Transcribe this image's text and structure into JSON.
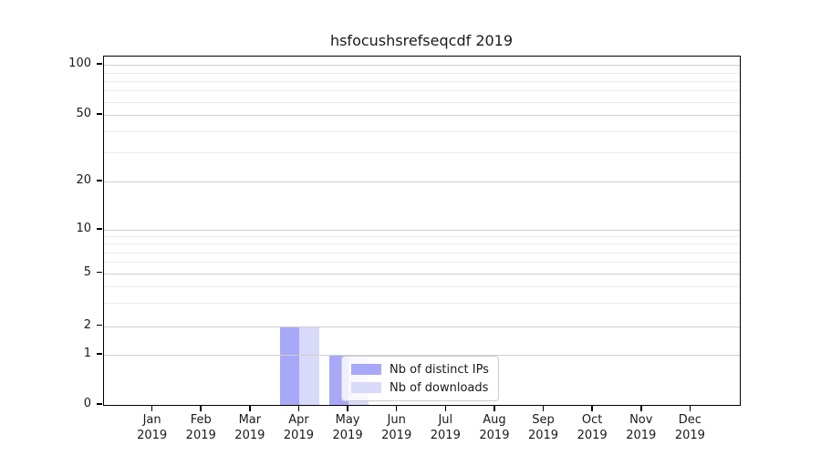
{
  "chart_data": {
    "type": "bar",
    "title": "hsfocushsrefseqcdf 2019",
    "categories": [
      "Jan 2019",
      "Feb 2019",
      "Mar 2019",
      "Apr 2019",
      "May 2019",
      "Jun 2019",
      "Jul 2019",
      "Aug 2019",
      "Sep 2019",
      "Oct 2019",
      "Nov 2019",
      "Dec 2019"
    ],
    "series": [
      {
        "name": "Nb of distinct IPs",
        "color": "#a8a8f8",
        "values": [
          0,
          0,
          0,
          2,
          1,
          0,
          0,
          0,
          0,
          0,
          0,
          0
        ]
      },
      {
        "name": "Nb of downloads",
        "color": "#d9d9fa",
        "values": [
          0,
          0,
          0,
          2,
          1,
          0,
          0,
          0,
          0,
          0,
          0,
          0
        ]
      }
    ],
    "yscale": "symlog",
    "ylim": [
      0,
      100
    ],
    "yticks": [
      0,
      1,
      2,
      5,
      10,
      20,
      50,
      100
    ],
    "ytick_fractions_from_top": [
      1.0,
      0.856,
      0.774,
      0.622,
      0.498,
      0.358,
      0.168,
      0.024
    ],
    "minor_grid_values": [
      3,
      4,
      6,
      7,
      8,
      9,
      30,
      40,
      60,
      70,
      80,
      90
    ],
    "grid": "horizontal, major and minor, drawn above bars",
    "legend": {
      "position": "inside lower center"
    }
  },
  "colors": {
    "major_grid": "#cfcfcf",
    "minor_grid": "#ececec",
    "axis": "#000000",
    "text": "#1a1a1a",
    "legend_border": "#cccccc"
  }
}
